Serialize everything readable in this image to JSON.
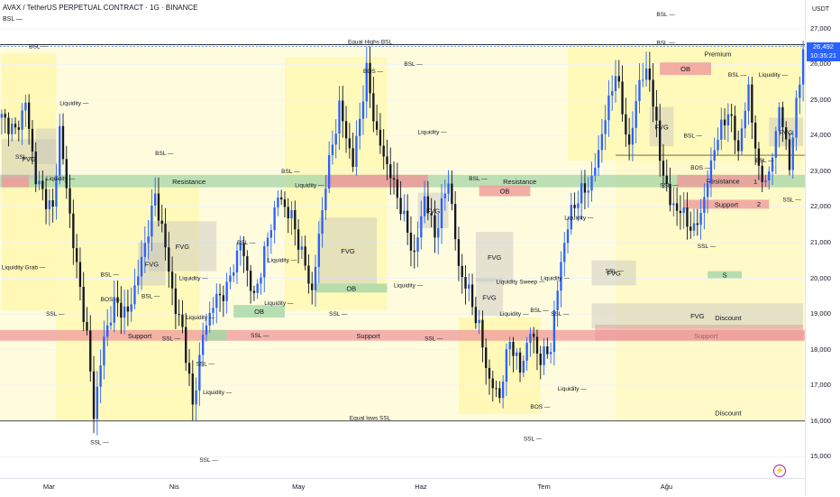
{
  "header": {
    "title": "AVAX / TetherUS PERPETUAL CONTRACT · 1G · BINANCE",
    "subtitle": "BSL —"
  },
  "axis": {
    "currency": "USDT",
    "last_price": "26,492",
    "countdown": "10:35:21"
  },
  "colors": {
    "up": "#2962ff",
    "down": "#131722",
    "zone_yellow": "#fff59d",
    "support": "#ef9a9a",
    "resistance": "#a5d6a7",
    "fvg": "#bdbdbd"
  },
  "chart_data": {
    "type": "candlestick",
    "title": "AVAX / TetherUS PERPETUAL CONTRACT · 1G · BINANCE",
    "y_unit": "USDT",
    "ylim": [
      14400,
      27800
    ],
    "yticks": [
      "15,000",
      "16,000",
      "17,000",
      "18,000",
      "19,000",
      "20,000",
      "21,000",
      "22,000",
      "23,000",
      "24,000",
      "25,000",
      "26,000",
      "27,000"
    ],
    "ytick_values": [
      15000,
      16000,
      17000,
      18000,
      19000,
      20000,
      21000,
      22000,
      23000,
      24000,
      25000,
      26000,
      27000
    ],
    "xticks": [
      "Mar",
      "Nis",
      "May",
      "Haz",
      "Tem",
      "Ağu"
    ],
    "xtick_index": [
      14,
      51,
      87,
      123,
      159,
      195
    ],
    "last_price": 26492,
    "candles_ohlc": [],
    "levels": [
      {
        "label": "Equal Highs BSL",
        "price": 26550
      },
      {
        "label": "Equal lows SSL",
        "price": 16000
      }
    ],
    "zones": [
      {
        "label": "Resistance",
        "from_index": 0,
        "to_index": 235,
        "low": 22550,
        "high": 22900,
        "color": "#a5d6a7"
      },
      {
        "label": "Support",
        "from_index": 0,
        "to_index": 235,
        "low": 18250,
        "high": 18550,
        "color": "#ef9a9a"
      },
      {
        "label": "OB",
        "from_index": 140,
        "to_index": 155,
        "low": 22300,
        "high": 22600,
        "color": "#ef9a9a"
      },
      {
        "label": "OB",
        "from_index": 92,
        "to_index": 113,
        "low": 19600,
        "high": 19850,
        "color": "#a5d6a7"
      },
      {
        "label": "OB",
        "from_index": 68,
        "to_index": 83,
        "low": 18900,
        "high": 19250,
        "color": "#a5d6a7"
      },
      {
        "label": "OB",
        "from_index": 193,
        "to_index": 208,
        "low": 25700,
        "high": 26050,
        "color": "#ef9a9a"
      },
      {
        "label": "Support",
        "from_index": 200,
        "to_index": 225,
        "low": 21950,
        "high": 22200,
        "color": "#ef9a9a"
      },
      {
        "label": "Resistance",
        "from_index": 198,
        "to_index": 225,
        "low": 22550,
        "high": 22900,
        "color": "#ef9a9a"
      },
      {
        "label": "S",
        "from_index": 207,
        "to_index": 217,
        "low": 20000,
        "high": 20200,
        "color": "#a5d6a7"
      }
    ],
    "annotations": [
      "BSL",
      "SSL",
      "BOS",
      "Liquidity",
      "Liquidity Grab",
      "Liquidity Sweep",
      "FVG",
      "Premium",
      "Discount",
      "1",
      "2"
    ]
  },
  "labels": {
    "equal_highs": "Equal Highs BSL",
    "equal_lows": "Equal lows SSL",
    "resistance": "Resistance",
    "support": "Support",
    "ob": "OB",
    "fvg": "FVG",
    "bsl": "BSL",
    "ssl": "SSL",
    "bos": "BOS",
    "liquidity": "Liquidity",
    "liquidity_grab": "Liquidity Grab",
    "liquidity_sweep": "Liquidity Sweep",
    "premium": "Premium",
    "discount": "Discount",
    "s": "S",
    "one": "1",
    "two": "2"
  }
}
